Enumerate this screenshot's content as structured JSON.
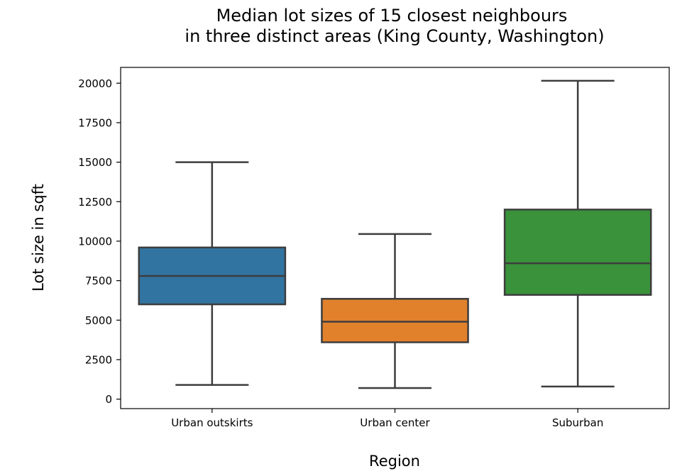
{
  "chart_data": {
    "type": "box",
    "title": [
      "Median lot sizes of 15 closest neighbours",
      "in three distinct areas (King County, Washington)"
    ],
    "xlabel": "Region",
    "ylabel": "Lot size in sqft",
    "ylim": [
      -600,
      21000
    ],
    "yticks": [
      0,
      2500,
      5000,
      7500,
      10000,
      12500,
      15000,
      17500,
      20000
    ],
    "grid": false,
    "categories": [
      "Urban outskirts",
      "Urban center",
      "Suburban"
    ],
    "boxes": [
      {
        "name": "Urban outskirts",
        "whisker_low": 900,
        "q1": 6000,
        "median": 7800,
        "q3": 9600,
        "whisker_high": 15000,
        "color": "#3274a1"
      },
      {
        "name": "Urban center",
        "whisker_low": 700,
        "q1": 3600,
        "median": 4900,
        "q3": 6350,
        "whisker_high": 10450,
        "color": "#e1812c"
      },
      {
        "name": "Suburban",
        "whisker_low": 800,
        "q1": 6600,
        "median": 8600,
        "q3": 12000,
        "whisker_high": 20150,
        "color": "#3a923a"
      }
    ],
    "line_color": "#3d3d3d"
  }
}
